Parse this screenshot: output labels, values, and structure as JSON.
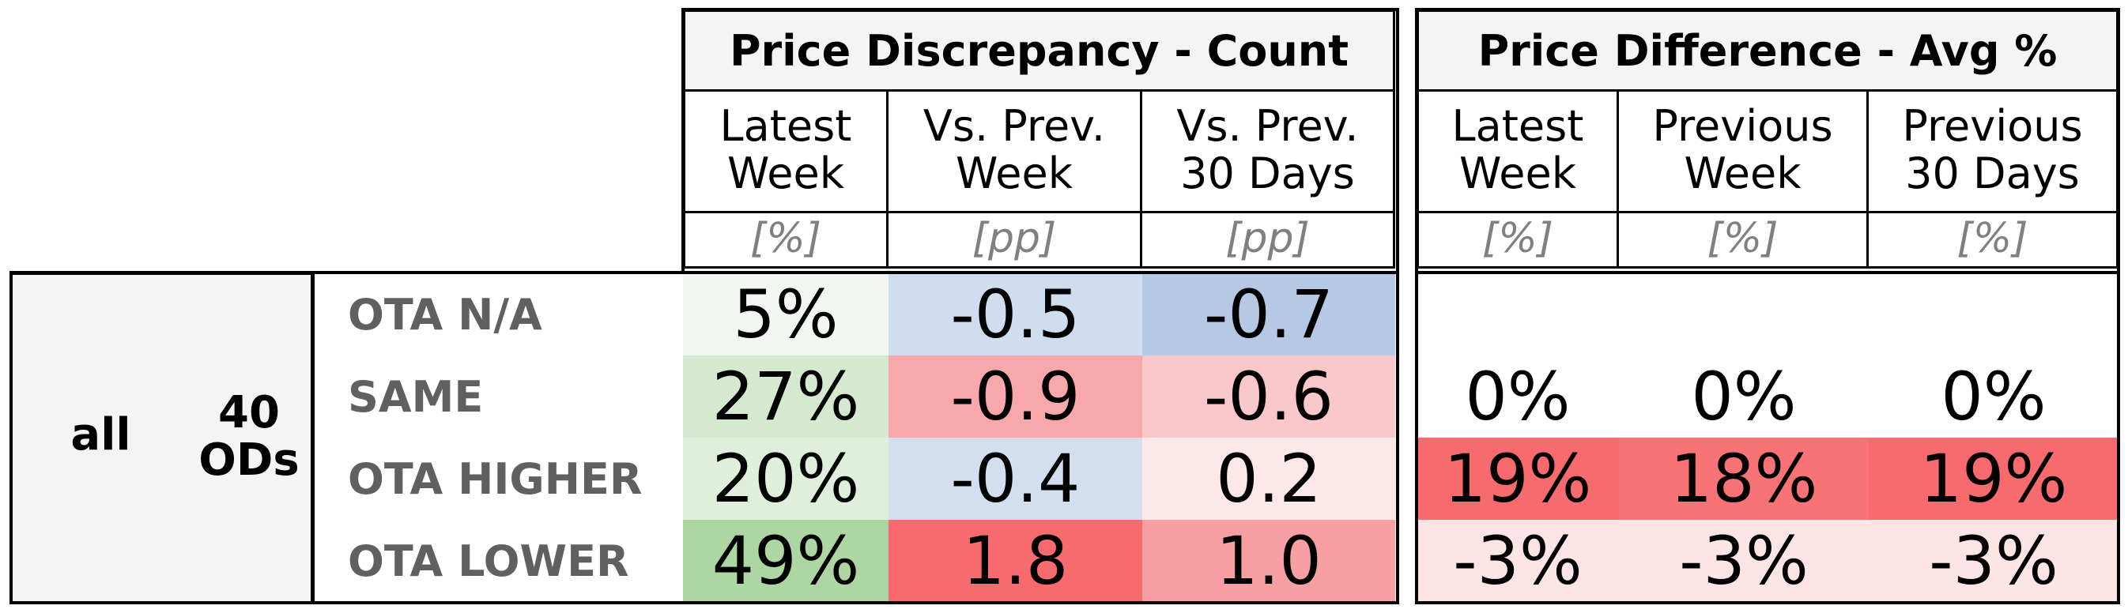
{
  "chart_data": {
    "type": "table",
    "group": {
      "label": "all",
      "ods": "40\nODs"
    },
    "row_labels": [
      "OTA N/A",
      "SAME",
      "OTA HIGHER",
      "OTA LOWER"
    ],
    "sections": [
      {
        "title": "Price Discrepancy - Count",
        "columns": [
          {
            "header": "Latest\nWeek",
            "unit": "[%]",
            "values": [
              "5%",
              "27%",
              "20%",
              "49%"
            ],
            "colors": [
              "#f2f8f1",
              "#d4e9cf",
              "#e0efdc",
              "#add6a2"
            ]
          },
          {
            "header": "Vs. Prev.\nWeek",
            "unit": "[pp]",
            "values": [
              "-0.5",
              "-0.9",
              "-0.4",
              "1.8"
            ],
            "colors": [
              "#d0ddee",
              "#f8a8aa",
              "#d3dfef",
              "#f76b6e"
            ]
          },
          {
            "header": "Vs. Prev.\n30 Days",
            "unit": "[pp]",
            "values": [
              "-0.7",
              "-0.6",
              "0.2",
              "1.0"
            ],
            "colors": [
              "#b6c9e4",
              "#fac8ca",
              "#fde8e9",
              "#f79fa2"
            ]
          }
        ]
      },
      {
        "title": "Price Difference - Avg %",
        "columns": [
          {
            "header": "Latest\nWeek",
            "unit": "[%]",
            "values": [
              "",
              "0%",
              "19%",
              "-3%"
            ],
            "colors": [
              "#ffffff",
              "#ffffff",
              "#f76b6e",
              "#fde4e5"
            ]
          },
          {
            "header": "Previous\nWeek",
            "unit": "[%]",
            "values": [
              "",
              "0%",
              "18%",
              "-3%"
            ],
            "colors": [
              "#ffffff",
              "#ffffff",
              "#f77375",
              "#fde4e5"
            ]
          },
          {
            "header": "Previous\n30 Days",
            "unit": "[%]",
            "values": [
              "",
              "0%",
              "19%",
              "-3%"
            ],
            "colors": [
              "#ffffff",
              "#ffffff",
              "#f76b6e",
              "#fde4e5"
            ]
          }
        ]
      }
    ]
  }
}
